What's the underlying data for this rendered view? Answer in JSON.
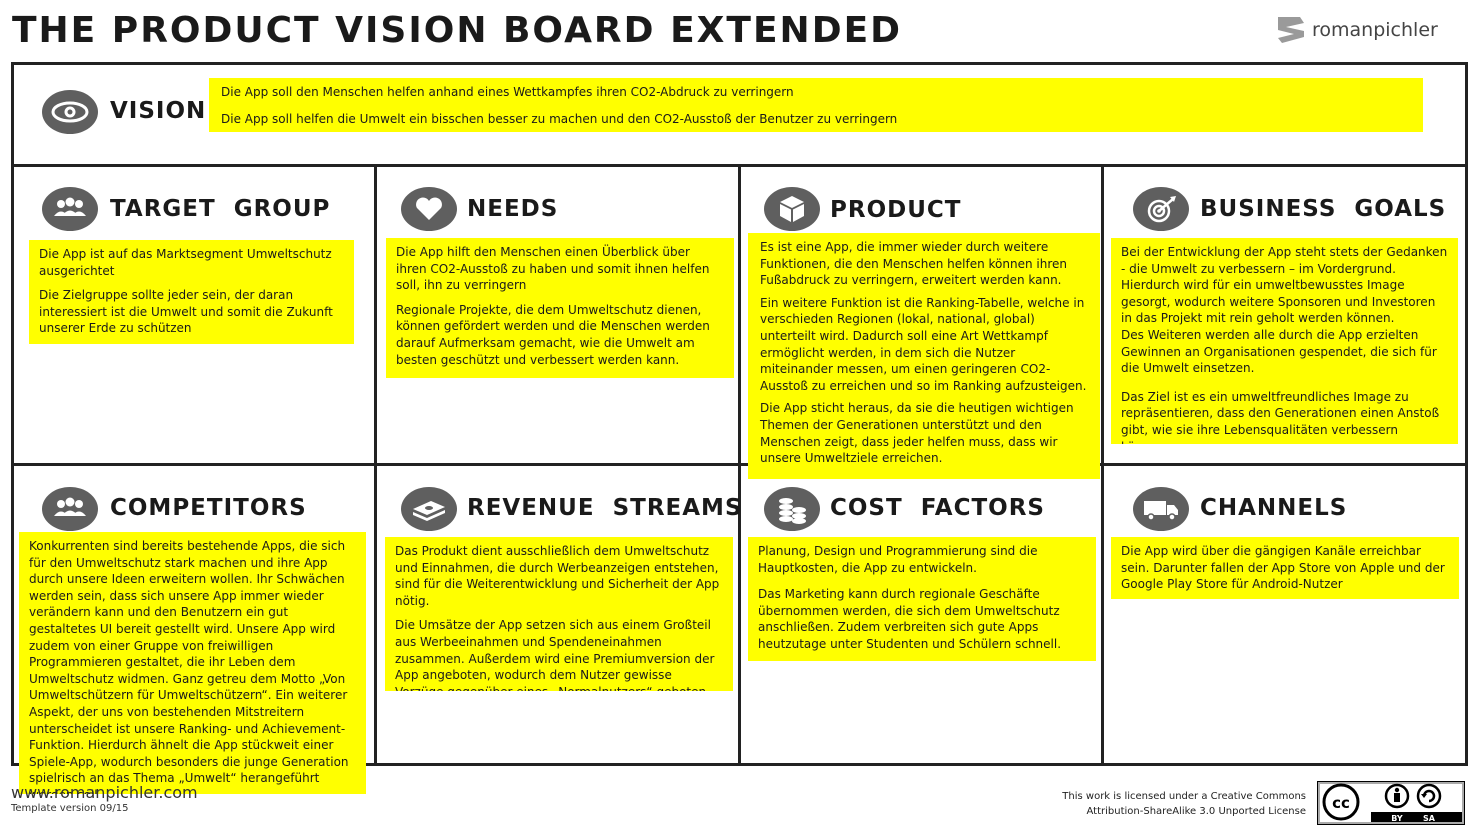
{
  "header": {
    "title": "THE PRODUCT VISION BOARD EXTENDED",
    "brand": "romanpichler"
  },
  "vision": {
    "label": "VISION",
    "icon": "eye-icon",
    "lines": [
      "Die App soll den Menschen helfen anhand eines Wettkampfes ihren CO2-Abdruck zu verringern",
      "Die App soll helfen die Umwelt ein bisschen besser zu machen und den CO2-Ausstoß der Benutzer zu verringern"
    ]
  },
  "sections": {
    "target_group": {
      "label": "TARGET  GROUP",
      "icon": "people-icon",
      "paragraphs": [
        "Die App ist auf das Marktsegment Umweltschutz ausgerichtet",
        "Die Zielgruppe sollte jeder sein, der daran interessiert ist die Umwelt und somit die Zukunft unserer Erde zu schützen"
      ]
    },
    "needs": {
      "label": "NEEDS",
      "icon": "heart-icon",
      "paragraphs": [
        "Die App hilft den Menschen einen Überblick über ihren CO2-Ausstoß zu haben und somit ihnen helfen soll, ihn zu verringern",
        "Regionale Projekte, die dem Umweltschutz dienen, können gefördert werden und die Menschen werden darauf Aufmerksam gemacht, wie die Umwelt am besten geschützt und verbessert werden kann."
      ]
    },
    "product": {
      "label": "PRODUCT",
      "icon": "box-icon",
      "paragraphs": [
        "Es ist eine App, die immer wieder durch weitere Funktionen, die den Menschen helfen können ihren Fußabdruck zu verringern, erweitert werden kann.",
        "Ein weitere Funktion ist die Ranking-Tabelle, welche in verschieden Regionen (lokal, national, global) unterteilt wird.  Dadurch soll eine Art Wettkampf ermöglicht werden, in dem sich die Nutzer miteinander messen, um einen geringeren CO2-Ausstoß zu erreichen und so im Ranking aufzusteigen.",
        "Die App sticht heraus, da sie die heutigen wichtigen Themen der Generationen unterstützt und den Menschen zeigt, dass jeder helfen muss, dass wir unsere Umweltziele erreichen."
      ]
    },
    "business_goals": {
      "label": "BUSINESS  GOALS",
      "icon": "target-icon",
      "paragraphs": [
        "Bei der Entwicklung der App steht stets der Gedanken - die Umwelt zu verbessern – im Vordergrund. Hierdurch wird für ein umweltbewusstes Image gesorgt, wodurch weitere Sponsoren und Investoren in das Projekt mit rein geholt werden können.",
        "Des Weiteren werden alle durch die App erzielten Gewinnen an Organisationen gespendet, die sich für die Umwelt einsetzen.",
        "Das Ziel ist es ein umweltfreundliches Image zu repräsentieren, dass den Generationen einen Anstoß gibt, wie sie ihre Lebensqualitäten verbessern können."
      ]
    },
    "competitors": {
      "label": "COMPETITORS",
      "icon": "people-icon",
      "paragraphs": [
        "Konkurrenten sind bereits bestehende Apps, die sich für den Umweltschutz stark machen und ihre App durch unsere Ideen erweitern wollen. Ihr Schwächen werden sein, dass sich unsere App immer wieder verändern kann und den Benutzern ein gut gestaltetes UI bereit gestellt wird. Unsere App wird zudem von einer Gruppe von freiwilligen Programmieren gestaltet, die ihr Leben dem Umweltschutz widmen. Ganz getreu dem Motto „Von Umweltschützern für Umweltschützern“. Ein weiterer Aspekt, der uns von bestehenden Mitstreitern unterscheidet ist unsere Ranking- und Achievement-Funktion. Hierdurch ähnelt die App stückweit einer Spiele-App, wodurch besonders die junge Generation spielrisch an das Thema „Umwelt“ herangeführt werden soll."
      ]
    },
    "revenue_streams": {
      "label": "REVENUE  STREAMS",
      "icon": "money-icon",
      "paragraphs": [
        "Das Produkt dient ausschließlich dem Umweltschutz und Einnahmen, die durch Werbeanzeigen entstehen, sind für die Weiterentwicklung und Sicherheit der App nötig.",
        "Die Umsätze der App setzen sich aus einem Großteil aus Werbeeinahmen und Spendeneinahmen zusammen. Außerdem wird eine Premiumversion der App angeboten, wodurch dem Nutzer gewisse Vorzüge gegenüber eines „Normalnutzers“ geboten werden."
      ]
    },
    "cost_factors": {
      "label": "COST  FACTORS",
      "icon": "coins-icon",
      "paragraphs": [
        "Planung, Design und Programmierung sind die Hauptkosten, die App zu entwickeln.",
        "Das Marketing kann durch regionale Geschäfte übernommen werden, die sich dem Umweltschutz anschließen. Zudem verbreiten sich gute Apps heutzutage unter Studenten und Schülern schnell."
      ]
    },
    "channels": {
      "label": "CHANNELS",
      "icon": "truck-icon",
      "paragraphs": [
        "Die App wird über die gängigen Kanäle erreichbar sein. Darunter fallen der App Store von Apple und der Google Play Store für Android-Nutzer"
      ]
    }
  },
  "footer": {
    "url": "www.romanpichler.com",
    "version": "Template version 09/15",
    "license_line1": "This work is licensed under a Creative Commons",
    "license_line2": "Attribution-ShareAlike 3.0 Unported License",
    "cc_badge": {
      "cc": "cc",
      "by": "BY",
      "sa": "SA"
    }
  },
  "colors": {
    "note": "#ffff00",
    "icon": "#5f5f5f",
    "border": "#222222"
  }
}
